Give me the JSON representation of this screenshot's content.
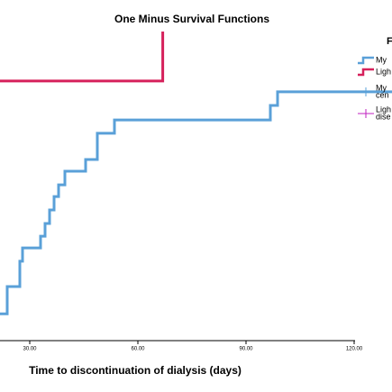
{
  "chart_data": {
    "type": "step",
    "title": "One Minus Survival Functions",
    "x_label": "Time to discontinuation of dialysis (days)",
    "xlim": [
      21.75,
      130.5
    ],
    "ylim": [
      -0.166,
      1.102
    ],
    "xticks": [
      {
        "value": 30,
        "label": "30.00"
      },
      {
        "value": 60,
        "label": "60.00"
      },
      {
        "value": 90,
        "label": "90.00"
      },
      {
        "value": 120,
        "label": "120.00"
      }
    ],
    "series": [
      {
        "name": "My",
        "color": "#5aa0d8",
        "x": [
          21.75,
          23.75,
          27.25,
          28,
          33,
          34.25,
          35.5,
          36.75,
          38,
          39.75,
          45.5,
          48.75,
          53.5,
          96.75,
          98.75,
          130.5
        ],
        "values": [
          0.087,
          0.175,
          0.257,
          0.3,
          0.338,
          0.379,
          0.423,
          0.466,
          0.504,
          0.548,
          0.586,
          0.671,
          0.714,
          0.761,
          0.805,
          0.805
        ]
      },
      {
        "name": "Ligh",
        "color": "#d6215b",
        "x": [
          21.75,
          66.9
        ],
        "values": [
          0.84,
          1.0
        ]
      }
    ],
    "legend": {
      "title": "F",
      "censored": [
        {
          "lines": [
            "My",
            "cen"
          ],
          "color": "#5aa0d8"
        },
        {
          "lines": [
            "Ligh",
            "dise"
          ],
          "color": "#c020c0"
        }
      ]
    }
  }
}
